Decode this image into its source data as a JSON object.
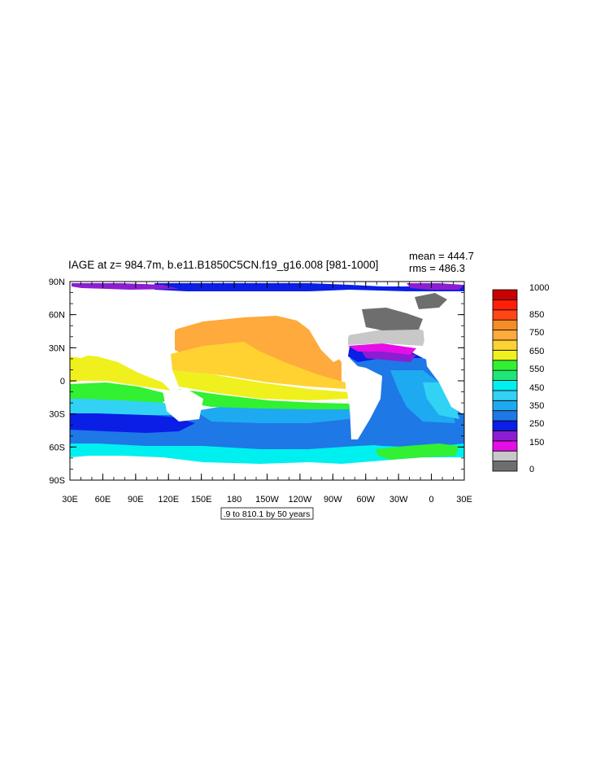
{
  "title": "IAGE at z= 984.7m, b.e11.B1850C5CN.f19_g16.008 [981-1000]",
  "stats": {
    "mean": "mean = 444.7",
    "rms": "rms = 486.3"
  },
  "lat_labels": [
    "90N",
    "60N",
    "30N",
    "0",
    "30S",
    "60S",
    "90S"
  ],
  "lon_labels": [
    "30E",
    "60E",
    "90E",
    "120E",
    "150E",
    "180",
    "150W",
    "120W",
    "90W",
    "60W",
    "30W",
    "0",
    "30E"
  ],
  "colorbar": {
    "labels": [
      "1000",
      "850",
      "750",
      "650",
      "550",
      "450",
      "350",
      "250",
      "150",
      "0"
    ],
    "colors": [
      "#6e6e6e",
      "#c8c8c8",
      "#e60ee6",
      "#8c1ed2",
      "#0a1ee6",
      "#1e78e6",
      "#1eaaf0",
      "#32d2f5",
      "#00f0f0",
      "#1ee678",
      "#32f032",
      "#f0f01e",
      "#ffd232",
      "#ffaa3c",
      "#f58c28",
      "#ff4614",
      "#ff1e0a",
      "#c80000"
    ]
  },
  "contour_info": ".9 to 810.1 by 50 years"
}
